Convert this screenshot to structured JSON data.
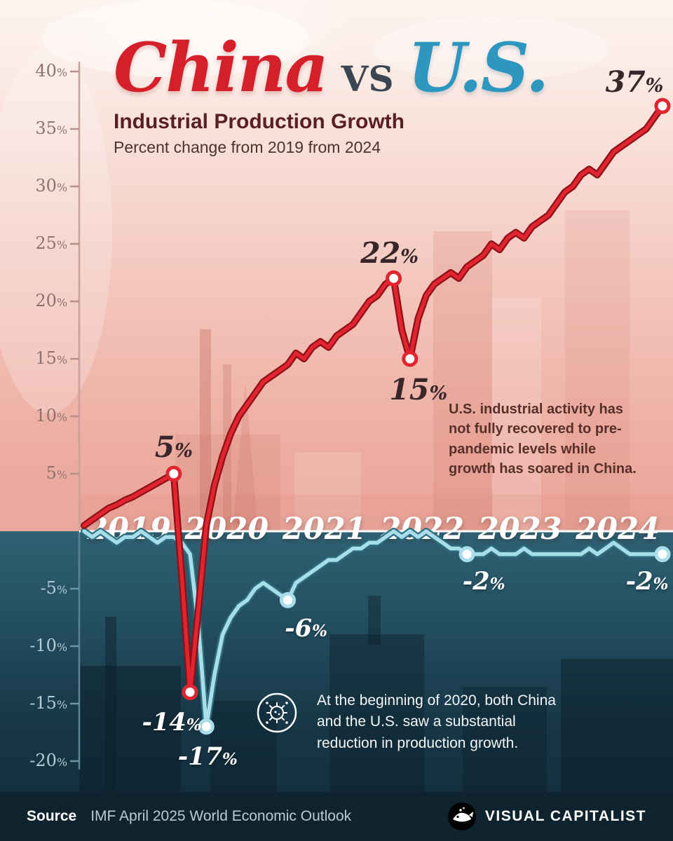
{
  "header": {
    "china": "China",
    "vs": "VS",
    "us": "U.S.",
    "subtitle": "Industrial Production Growth",
    "tagline": "Percent change from 2019 from 2024"
  },
  "notes": {
    "us_note": "U.S. industrial activity has not fully recovered to pre-pandemic levels while growth has soared in China.",
    "covid_note": "At the beginning of 2020, both China and the U.S. saw a substantial reduction in production growth."
  },
  "footer": {
    "source_label": "Source",
    "source_text": "IMF April 2025 World Economic Outlook",
    "brand": "VISUAL CAPITALIST"
  },
  "colors": {
    "china_line": "#e02531",
    "china_edge": "#8e1016",
    "us_line": "#a8dde9",
    "us_edge": "#2f6e80",
    "zero_line": "#ffffff",
    "background_top": "#f3c5bb",
    "background_bottom": "#112b38"
  },
  "chart_data": {
    "type": "line",
    "title": "China vs U.S. Industrial Production Growth",
    "subtitle": "Percent change from 2019 from 2024",
    "x_years": [
      2019,
      2020,
      2021,
      2022,
      2023,
      2024
    ],
    "x_unit": "month",
    "ylim": [
      -20,
      40
    ],
    "y_ticks": [
      40,
      35,
      30,
      25,
      20,
      15,
      10,
      5,
      -5,
      -10,
      -15,
      -20
    ],
    "grid": false,
    "legend": "none",
    "series": [
      {
        "name": "China",
        "color": "#e02531",
        "edge": "#8e1016",
        "values": [
          0.5,
          1,
          1.5,
          2,
          2.3,
          2.7,
          3,
          3.4,
          3.8,
          4.2,
          4.6,
          5,
          -4,
          -14,
          -7,
          0.5,
          4,
          6.5,
          8.5,
          10,
          11,
          12,
          13,
          13.5,
          14,
          14.5,
          15.5,
          15,
          16,
          16.5,
          16,
          17,
          17.5,
          18,
          19,
          20,
          20.5,
          21.5,
          22,
          17.5,
          15,
          18.5,
          20.5,
          21.5,
          22,
          22.5,
          22,
          23,
          23.5,
          24,
          25,
          24.5,
          25.5,
          26,
          25.5,
          26.5,
          27,
          27.5,
          28.5,
          29.5,
          30,
          31,
          31.5,
          31,
          32,
          33,
          33.5,
          34,
          34.5,
          35,
          36,
          37
        ]
      },
      {
        "name": "U.S.",
        "color": "#a8dde9",
        "edge": "#2f6e80",
        "values": [
          0,
          -0.5,
          0,
          -0.5,
          -1,
          -0.5,
          -0.5,
          0,
          -0.5,
          -1,
          -0.5,
          -0.5,
          -1,
          -2,
          -8,
          -17,
          -12.5,
          -9,
          -7.5,
          -6.5,
          -6,
          -5,
          -4.5,
          -5,
          -5.5,
          -6,
          -4.5,
          -4,
          -3.5,
          -3,
          -2.5,
          -2.5,
          -2,
          -1.5,
          -1.5,
          -1,
          -1,
          -0.5,
          0,
          -0.5,
          0,
          -0.5,
          0,
          -0.5,
          -1,
          -1.5,
          -1.5,
          -2,
          -2,
          -2,
          -1.5,
          -2,
          -2,
          -2,
          -1.5,
          -2,
          -2,
          -2,
          -2,
          -2,
          -2,
          -2,
          -1.5,
          -2,
          -1.5,
          -1,
          -1.5,
          -2,
          -2,
          -2,
          -2,
          -2
        ]
      }
    ],
    "annotations": [
      {
        "series": "China",
        "index": 11,
        "label": "5%"
      },
      {
        "series": "China",
        "index": 13,
        "label": "-14%"
      },
      {
        "series": "China",
        "index": 38,
        "label": "22%"
      },
      {
        "series": "China",
        "index": 40,
        "label": "15%"
      },
      {
        "series": "China",
        "index": 71,
        "label": "37%"
      },
      {
        "series": "U.S.",
        "index": 15,
        "label": "-17%"
      },
      {
        "series": "U.S.",
        "index": 25,
        "label": "-6%"
      },
      {
        "series": "U.S.",
        "index": 47,
        "label": "-2%"
      },
      {
        "series": "U.S.",
        "index": 71,
        "label": "-2%"
      }
    ]
  }
}
